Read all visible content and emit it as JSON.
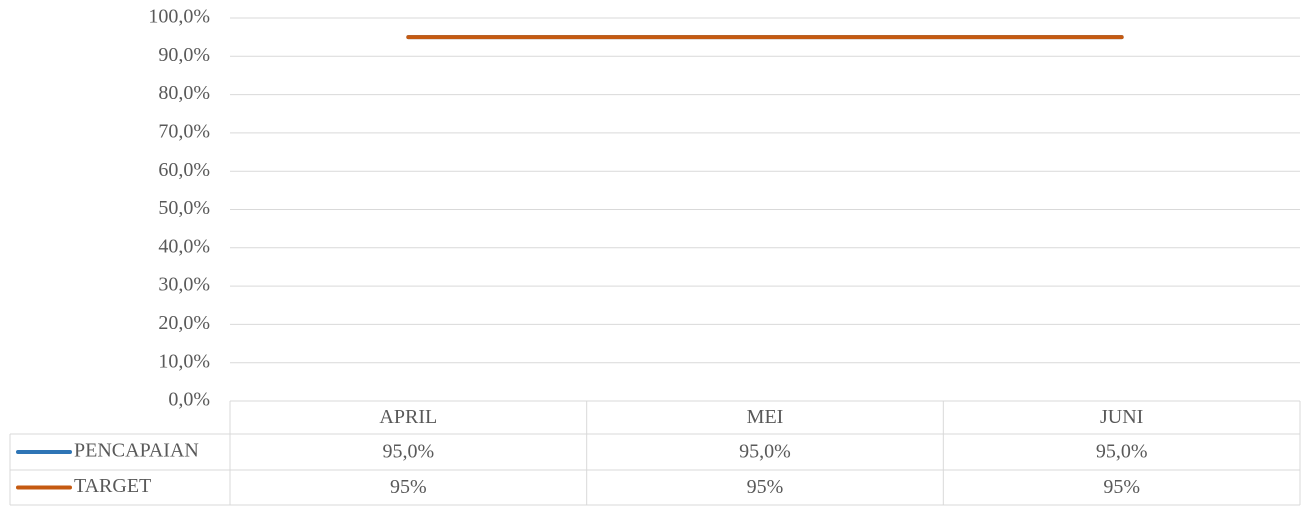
{
  "chart_data": {
    "type": "line",
    "categories": [
      "APRIL",
      "MEI",
      "JUNI"
    ],
    "series": [
      {
        "name": "PENCAPAIAN",
        "color": "#2e75b6",
        "values": [
          95,
          95,
          95
        ],
        "value_labels": [
          "95,0%",
          "95,0%",
          "95,0%"
        ]
      },
      {
        "name": "TARGET",
        "color": "#c55a11",
        "values": [
          95,
          95,
          95
        ],
        "value_labels": [
          "95%",
          "95%",
          "95%"
        ]
      }
    ],
    "ylim": [
      0,
      100
    ],
    "yticks": [
      {
        "value": 0,
        "label": "0,0%"
      },
      {
        "value": 10,
        "label": "10,0%"
      },
      {
        "value": 20,
        "label": "20,0%"
      },
      {
        "value": 30,
        "label": "30,0%"
      },
      {
        "value": 40,
        "label": "40,0%"
      },
      {
        "value": 50,
        "label": "50,0%"
      },
      {
        "value": 60,
        "label": "60,0%"
      },
      {
        "value": 70,
        "label": "70,0%"
      },
      {
        "value": 80,
        "label": "80,0%"
      },
      {
        "value": 90,
        "label": "90,0%"
      },
      {
        "value": 100,
        "label": "100,0%"
      }
    ],
    "grid": true,
    "data_table": true
  }
}
